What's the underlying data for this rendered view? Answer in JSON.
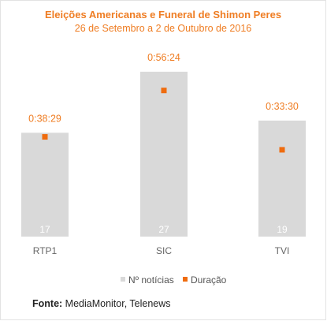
{
  "chart_data": {
    "type": "bar",
    "title": "Eleições Americanas e Funeral de Shimon Peres",
    "subtitle": "26 de Setembro a 2 de Outubro de 2016",
    "categories": [
      "RTP1",
      "SIC",
      "TVI"
    ],
    "series": [
      {
        "name": "Nº notícias",
        "type": "bar",
        "values": [
          17,
          27,
          19
        ],
        "color": "#d9d9d9"
      },
      {
        "name": "Duração",
        "type": "scatter",
        "values": [
          "0:38:29",
          "0:56:24",
          "0:33:30"
        ],
        "seconds": [
          2309,
          3384,
          2010
        ],
        "color": "#ef6c0f"
      }
    ],
    "ylim_bars": [
      0,
      29.7
    ],
    "ylim_duration_seconds": [
      0,
      4200
    ],
    "grid": false,
    "legend": "bottom",
    "bar_label_color": "#ffffff",
    "label_color": "#ef7d23"
  },
  "source": {
    "label": "Fonte:",
    "text": "MediaMonitor, Telenews"
  }
}
